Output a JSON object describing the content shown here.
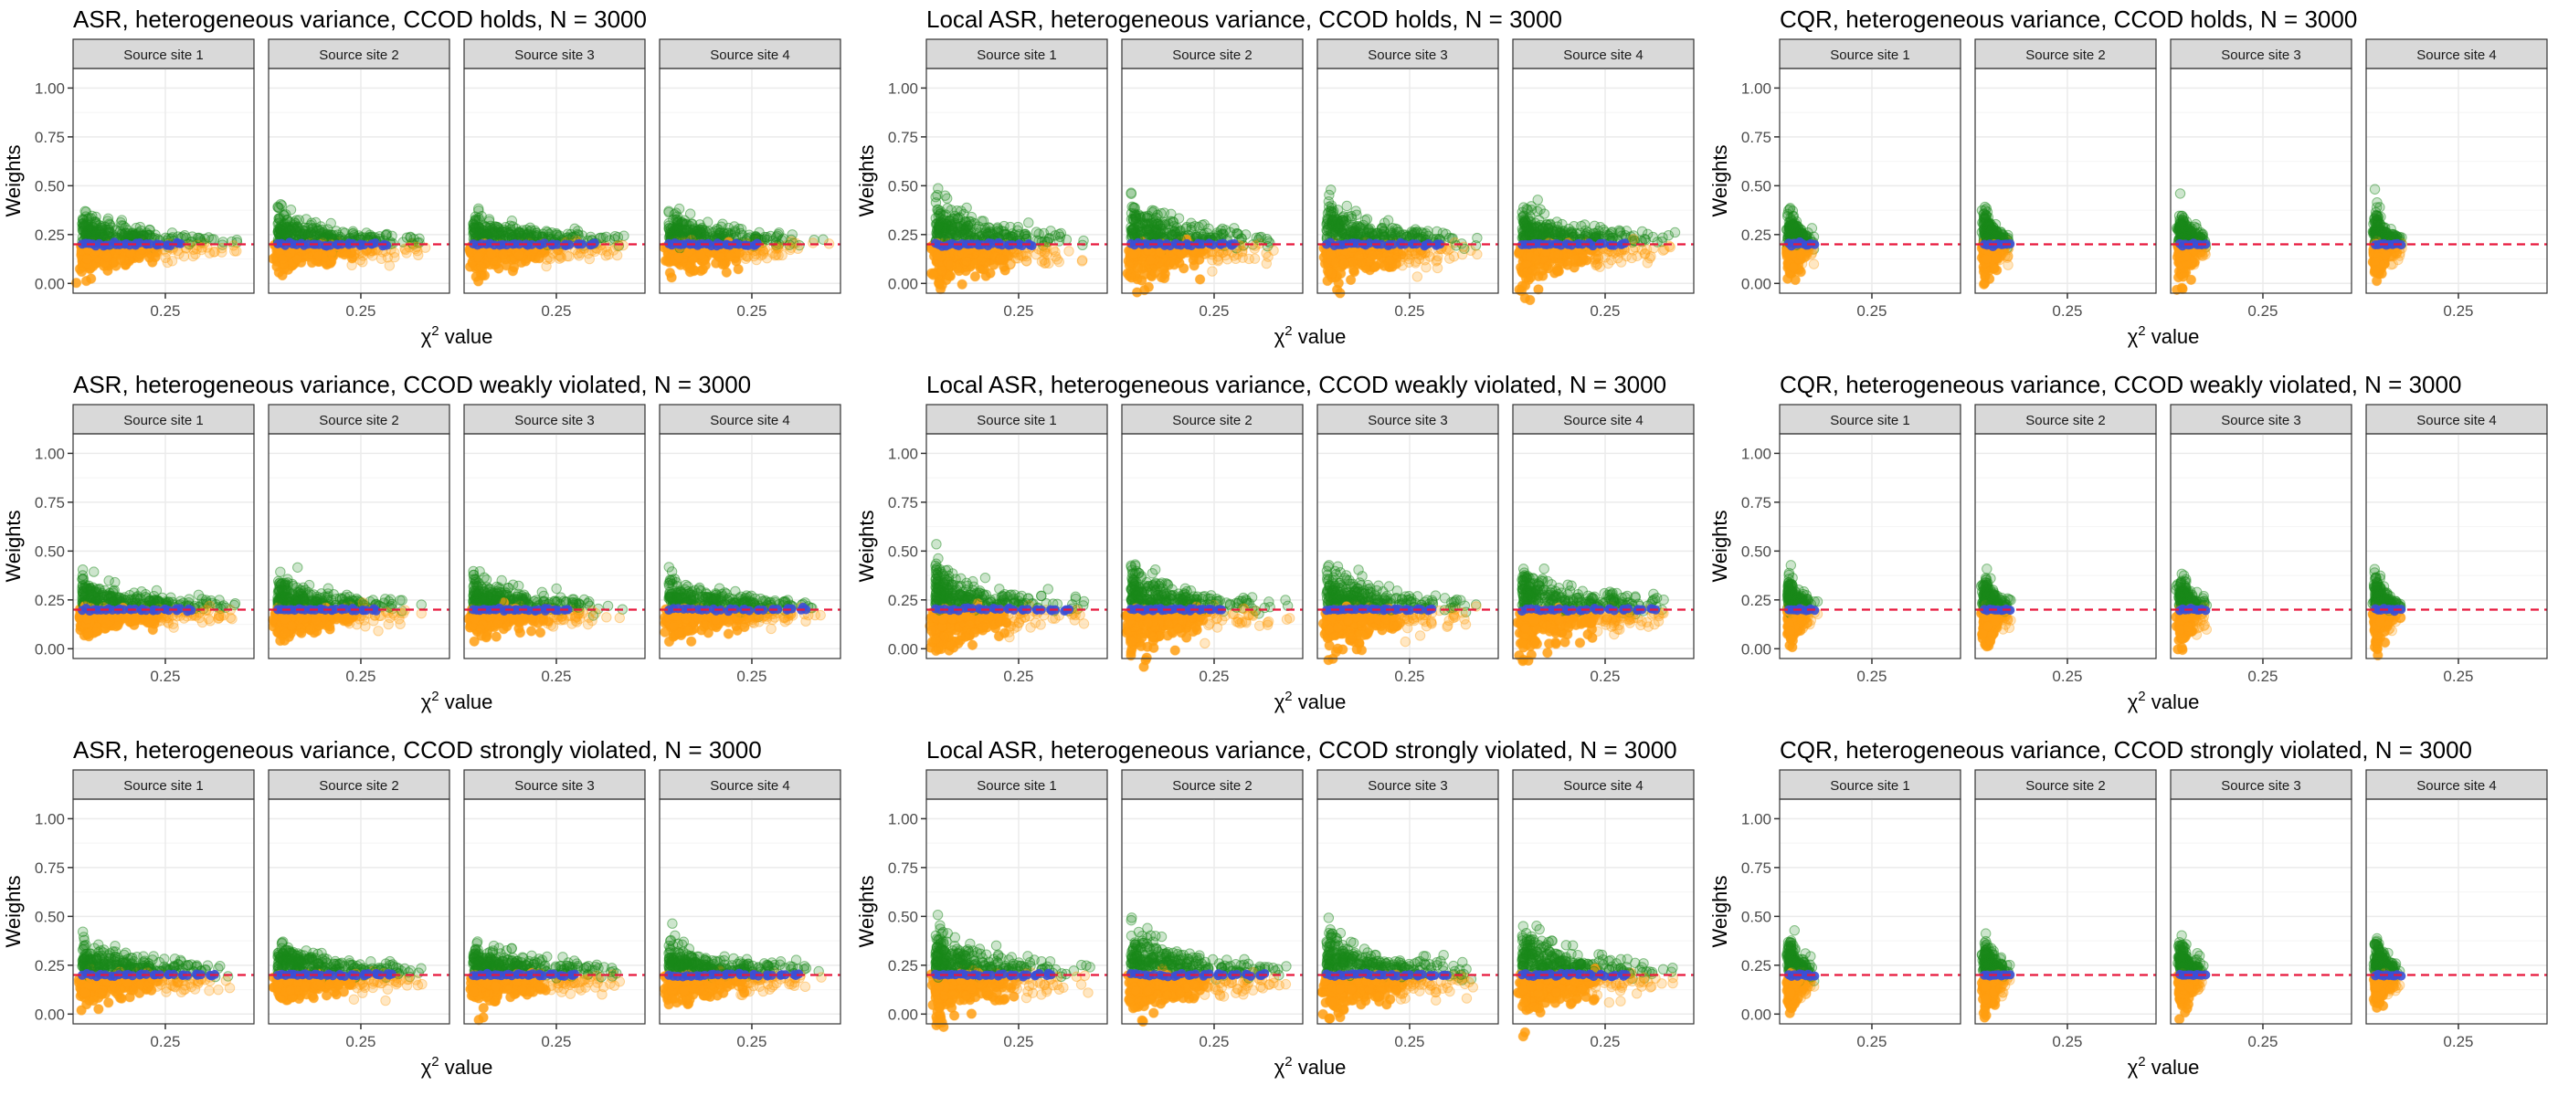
{
  "figure": {
    "ylabel": "Weights",
    "xlabel_symbol": "χ",
    "xlabel_sup": "2",
    "xlabel_rest": " value",
    "facet_labels": [
      "Source site 1",
      "Source site 2",
      "Source site 3",
      "Source site 4"
    ],
    "colors": {
      "green_points": "#1a8a1a",
      "orange_points": "#ff9e0f",
      "blue_points": "#3b4fd6",
      "reference_line": "#e8183c",
      "strip_fill": "#d9d9d9",
      "grid": "#ebebeb",
      "panel_border": "#333333"
    }
  },
  "chart_data": [
    {
      "type": "scatter",
      "method": "ASR",
      "condition": "holds",
      "title": "ASR, heterogeneous variance, CCOD holds, N = 3000",
      "ylim": [
        0,
        1.1
      ],
      "y_ticks": [
        "0.00",
        "0.25",
        "0.50",
        "0.75",
        "1.00"
      ],
      "x_tick_label": "0.25",
      "reference_y": 0.2,
      "facets": [
        "Source site 1",
        "Source site 2",
        "Source site 3",
        "Source site 4"
      ]
    },
    {
      "type": "scatter",
      "method": "Local ASR",
      "condition": "holds",
      "title": "Local ASR, heterogeneous variance, CCOD holds, N = 3000",
      "ylim": [
        0,
        1.1
      ],
      "y_ticks": [
        "0.00",
        "0.25",
        "0.50",
        "0.75",
        "1.00"
      ],
      "x_tick_label": "0.25",
      "reference_y": 0.2,
      "facets": [
        "Source site 1",
        "Source site 2",
        "Source site 3",
        "Source site 4"
      ]
    },
    {
      "type": "scatter",
      "method": "CQR",
      "condition": "holds",
      "title": "CQR, heterogeneous variance, CCOD holds, N = 3000",
      "ylim": [
        0,
        1.1
      ],
      "y_ticks": [
        "0.00",
        "0.25",
        "0.50",
        "0.75",
        "1.00"
      ],
      "x_tick_label": "0.25",
      "reference_y": 0.2,
      "facets": [
        "Source site 1",
        "Source site 2",
        "Source site 3",
        "Source site 4"
      ]
    },
    {
      "type": "scatter",
      "method": "ASR",
      "condition": "weakly violated",
      "title": "ASR, heterogeneous variance, CCOD weakly violated, N = 3000",
      "ylim": [
        0,
        1.1
      ],
      "y_ticks": [
        "0.00",
        "0.25",
        "0.50",
        "0.75",
        "1.00"
      ],
      "x_tick_label": "0.25",
      "reference_y": 0.2,
      "facets": [
        "Source site 1",
        "Source site 2",
        "Source site 3",
        "Source site 4"
      ]
    },
    {
      "type": "scatter",
      "method": "Local ASR",
      "condition": "weakly violated",
      "title": "Local ASR, heterogeneous variance, CCOD weakly violated, N = 3000",
      "ylim": [
        0,
        1.1
      ],
      "y_ticks": [
        "0.00",
        "0.25",
        "0.50",
        "0.75",
        "1.00"
      ],
      "x_tick_label": "0.25",
      "reference_y": 0.2,
      "facets": [
        "Source site 1",
        "Source site 2",
        "Source site 3",
        "Source site 4"
      ]
    },
    {
      "type": "scatter",
      "method": "CQR",
      "condition": "weakly violated",
      "title": "CQR, heterogeneous variance, CCOD weakly violated, N = 3000",
      "ylim": [
        0,
        1.1
      ],
      "y_ticks": [
        "0.00",
        "0.25",
        "0.50",
        "0.75",
        "1.00"
      ],
      "x_tick_label": "0.25",
      "reference_y": 0.2,
      "facets": [
        "Source site 1",
        "Source site 2",
        "Source site 3",
        "Source site 4"
      ]
    },
    {
      "type": "scatter",
      "method": "ASR",
      "condition": "strongly violated",
      "title": "ASR, heterogeneous variance, CCOD strongly violated, N = 3000",
      "ylim": [
        0,
        1.1
      ],
      "y_ticks": [
        "0.00",
        "0.25",
        "0.50",
        "0.75",
        "1.00"
      ],
      "x_tick_label": "0.25",
      "reference_y": 0.2,
      "facets": [
        "Source site 1",
        "Source site 2",
        "Source site 3",
        "Source site 4"
      ]
    },
    {
      "type": "scatter",
      "method": "Local ASR",
      "condition": "strongly violated",
      "title": "Local ASR, heterogeneous variance, CCOD strongly violated, N = 3000",
      "ylim": [
        0,
        1.1
      ],
      "y_ticks": [
        "0.00",
        "0.25",
        "0.50",
        "0.75",
        "1.00"
      ],
      "x_tick_label": "0.25",
      "reference_y": 0.2,
      "facets": [
        "Source site 1",
        "Source site 2",
        "Source site 3",
        "Source site 4"
      ]
    },
    {
      "type": "scatter",
      "method": "CQR",
      "condition": "strongly violated",
      "title": "CQR, heterogeneous variance, CCOD strongly violated, N = 3000",
      "ylim": [
        0,
        1.1
      ],
      "y_ticks": [
        "0.00",
        "0.25",
        "0.50",
        "0.75",
        "1.00"
      ],
      "x_tick_label": "0.25",
      "reference_y": 0.2,
      "facets": [
        "Source site 1",
        "Source site 2",
        "Source site 3",
        "Source site 4"
      ]
    }
  ]
}
